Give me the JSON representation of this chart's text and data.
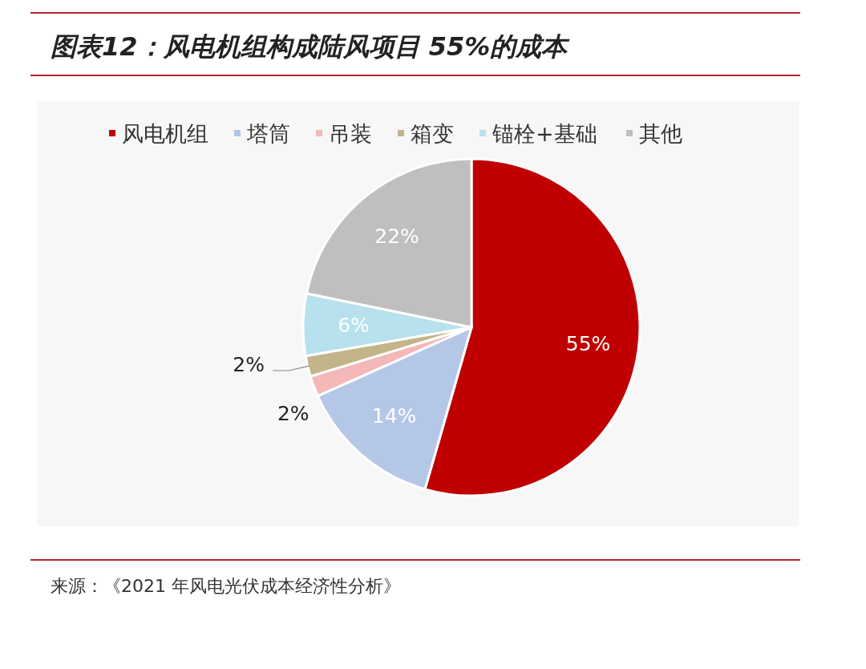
{
  "chart_data": {
    "type": "pie",
    "title": "图表12：风电机组构成陆风项目 55%的成本",
    "categories": [
      "风电机组",
      "塔筒",
      "吊装",
      "箱变",
      "锚栓+基础",
      "其他"
    ],
    "values": [
      55,
      14,
      2,
      2,
      6,
      22
    ],
    "colors": [
      "#c00000",
      "#b4c7e7",
      "#f4b8b8",
      "#c4b48a",
      "#b7e1ec",
      "#bfbfbf"
    ],
    "value_labels": [
      "55%",
      "14%",
      "2%",
      "2%",
      "6%",
      "22%"
    ],
    "legend": "top",
    "annotations": [
      "来源：《2021 年风电光伏成本经济性分析》"
    ]
  }
}
